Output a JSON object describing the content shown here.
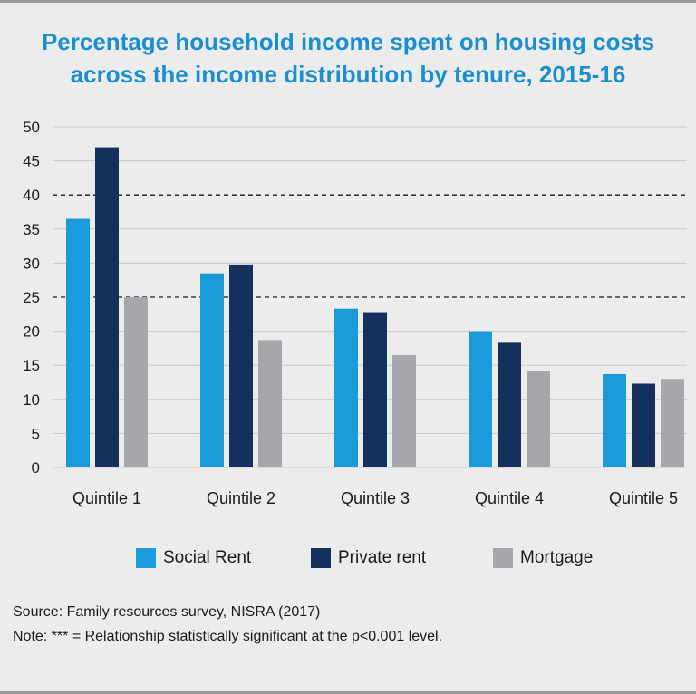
{
  "title_line1": "Percentage household income spent on housing costs",
  "title_line2": "across the income distribution by tenure, 2015-16",
  "source": "Source: Family resources survey, NISRA (2017)",
  "note": "Note: *** = Relationship statistically significant at the p<0.001 level.",
  "colors": {
    "social_rent": "#1a9ad9",
    "private_rent": "#14305c",
    "mortgage": "#a6a7ab"
  },
  "chart_data": {
    "type": "bar",
    "categories": [
      "Quintile 1",
      "Quintile 2",
      "Quintile 3",
      "Quintile 4",
      "Quintile 5"
    ],
    "series": [
      {
        "name": "Social Rent",
        "values": [
          36.5,
          28.5,
          23.3,
          20.0,
          13.7
        ]
      },
      {
        "name": "Private rent",
        "values": [
          47.0,
          29.8,
          22.8,
          18.3,
          12.3
        ]
      },
      {
        "name": "Mortgage",
        "values": [
          25.0,
          18.7,
          16.5,
          14.2,
          13.0
        ]
      }
    ],
    "ylim": [
      0,
      50
    ],
    "yticks": [
      "0",
      "5",
      "10",
      "15",
      "20",
      "25",
      "30",
      "35",
      "40",
      "45",
      "50"
    ],
    "reference_lines": [
      25,
      40
    ],
    "grid": true,
    "legend_position": "bottom"
  }
}
